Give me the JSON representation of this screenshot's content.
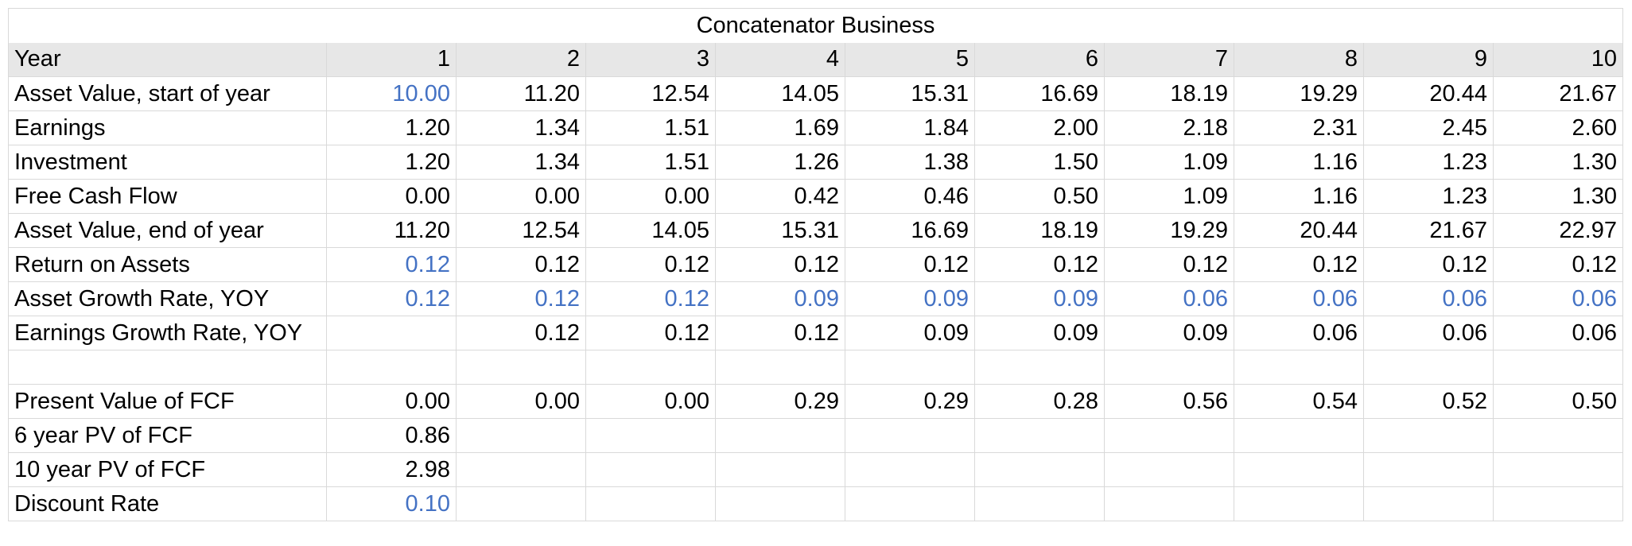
{
  "title": "Concatenator Business",
  "header": {
    "label": "Year",
    "columns": [
      "1",
      "2",
      "3",
      "4",
      "5",
      "6",
      "7",
      "8",
      "9",
      "10"
    ]
  },
  "rows": [
    {
      "label": "Asset Value, start of year",
      "values": [
        "10.00",
        "11.20",
        "12.54",
        "14.05",
        "15.31",
        "16.69",
        "18.19",
        "19.29",
        "20.44",
        "21.67"
      ],
      "blue": [
        true,
        false,
        false,
        false,
        false,
        false,
        false,
        false,
        false,
        false
      ]
    },
    {
      "label": "Earnings",
      "values": [
        "1.20",
        "1.34",
        "1.51",
        "1.69",
        "1.84",
        "2.00",
        "2.18",
        "2.31",
        "2.45",
        "2.60"
      ],
      "blue": [
        false,
        false,
        false,
        false,
        false,
        false,
        false,
        false,
        false,
        false
      ]
    },
    {
      "label": "Investment",
      "values": [
        "1.20",
        "1.34",
        "1.51",
        "1.26",
        "1.38",
        "1.50",
        "1.09",
        "1.16",
        "1.23",
        "1.30"
      ],
      "blue": [
        false,
        false,
        false,
        false,
        false,
        false,
        false,
        false,
        false,
        false
      ]
    },
    {
      "label": "Free Cash Flow",
      "values": [
        "0.00",
        "0.00",
        "0.00",
        "0.42",
        "0.46",
        "0.50",
        "1.09",
        "1.16",
        "1.23",
        "1.30"
      ],
      "blue": [
        false,
        false,
        false,
        false,
        false,
        false,
        false,
        false,
        false,
        false
      ]
    },
    {
      "label": "Asset Value, end of year",
      "values": [
        "11.20",
        "12.54",
        "14.05",
        "15.31",
        "16.69",
        "18.19",
        "19.29",
        "20.44",
        "21.67",
        "22.97"
      ],
      "blue": [
        false,
        false,
        false,
        false,
        false,
        false,
        false,
        false,
        false,
        false
      ]
    },
    {
      "label": "Return on Assets",
      "values": [
        "0.12",
        "0.12",
        "0.12",
        "0.12",
        "0.12",
        "0.12",
        "0.12",
        "0.12",
        "0.12",
        "0.12"
      ],
      "blue": [
        true,
        false,
        false,
        false,
        false,
        false,
        false,
        false,
        false,
        false
      ]
    },
    {
      "label": "Asset Growth Rate, YOY",
      "values": [
        "0.12",
        "0.12",
        "0.12",
        "0.09",
        "0.09",
        "0.09",
        "0.06",
        "0.06",
        "0.06",
        "0.06"
      ],
      "blue": [
        true,
        true,
        true,
        true,
        true,
        true,
        true,
        true,
        true,
        true
      ]
    },
    {
      "label": "Earnings Growth Rate, YOY",
      "values": [
        "",
        "0.12",
        "0.12",
        "0.12",
        "0.09",
        "0.09",
        "0.09",
        "0.06",
        "0.06",
        "0.06"
      ],
      "blue": [
        false,
        false,
        false,
        false,
        false,
        false,
        false,
        false,
        false,
        false
      ]
    },
    {
      "label": "",
      "values": [
        "",
        "",
        "",
        "",
        "",
        "",
        "",
        "",
        "",
        ""
      ],
      "blue": [
        false,
        false,
        false,
        false,
        false,
        false,
        false,
        false,
        false,
        false
      ]
    },
    {
      "label": "Present Value of FCF",
      "values": [
        "0.00",
        "0.00",
        "0.00",
        "0.29",
        "0.29",
        "0.28",
        "0.56",
        "0.54",
        "0.52",
        "0.50"
      ],
      "blue": [
        false,
        false,
        false,
        false,
        false,
        false,
        false,
        false,
        false,
        false
      ]
    },
    {
      "label": "6 year PV of FCF",
      "values": [
        "0.86",
        "",
        "",
        "",
        "",
        "",
        "",
        "",
        "",
        ""
      ],
      "blue": [
        false,
        false,
        false,
        false,
        false,
        false,
        false,
        false,
        false,
        false
      ]
    },
    {
      "label": "10 year PV of FCF",
      "values": [
        "2.98",
        "",
        "",
        "",
        "",
        "",
        "",
        "",
        "",
        ""
      ],
      "blue": [
        false,
        false,
        false,
        false,
        false,
        false,
        false,
        false,
        false,
        false
      ]
    },
    {
      "label": "Discount Rate",
      "values": [
        "0.10",
        "",
        "",
        "",
        "",
        "",
        "",
        "",
        "",
        ""
      ],
      "blue": [
        true,
        false,
        false,
        false,
        false,
        false,
        false,
        false,
        false,
        false
      ]
    }
  ],
  "colors": {
    "input_blue": "#4472c4",
    "header_bg": "#e7e7e7",
    "grid": "#d9d9d9"
  }
}
